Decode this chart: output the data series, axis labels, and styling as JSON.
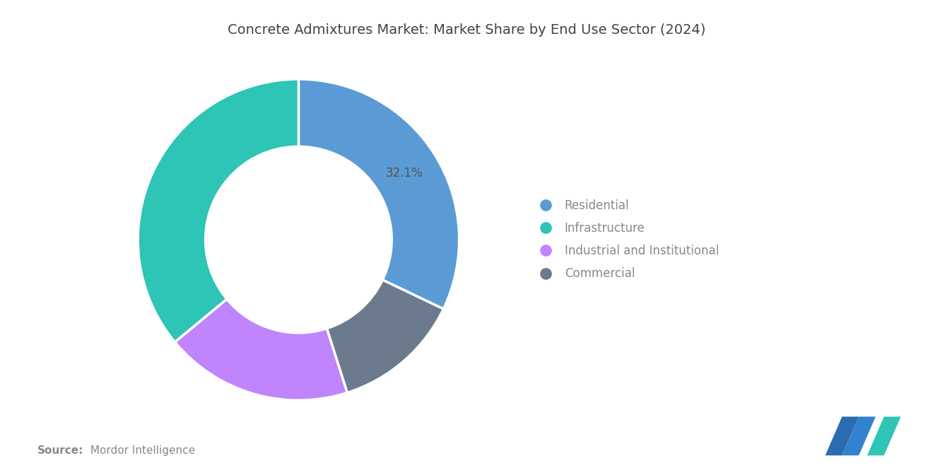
{
  "title": "Concrete Admixtures Market: Market Share by End Use Sector (2024)",
  "title_fontsize": 14,
  "title_color": "#444444",
  "background_color": "#ffffff",
  "segments": [
    "Residential",
    "Infrastructure",
    "Industrial and Institutional",
    "Commercial"
  ],
  "values": [
    32.1,
    36.0,
    18.9,
    13.0
  ],
  "colors": [
    "#5B9BD5",
    "#2EC4B6",
    "#C084FC",
    "#6B7B8D"
  ],
  "label_text": "32.1%",
  "legend_labels": [
    "Residential",
    "Infrastructure",
    "Industrial and Institutional",
    "Commercial"
  ],
  "source_bold": "Source:",
  "source_text": " Mordor Intelligence",
  "source_fontsize": 11,
  "source_color": "#888888",
  "legend_fontsize": 12,
  "legend_text_color": "#888888"
}
